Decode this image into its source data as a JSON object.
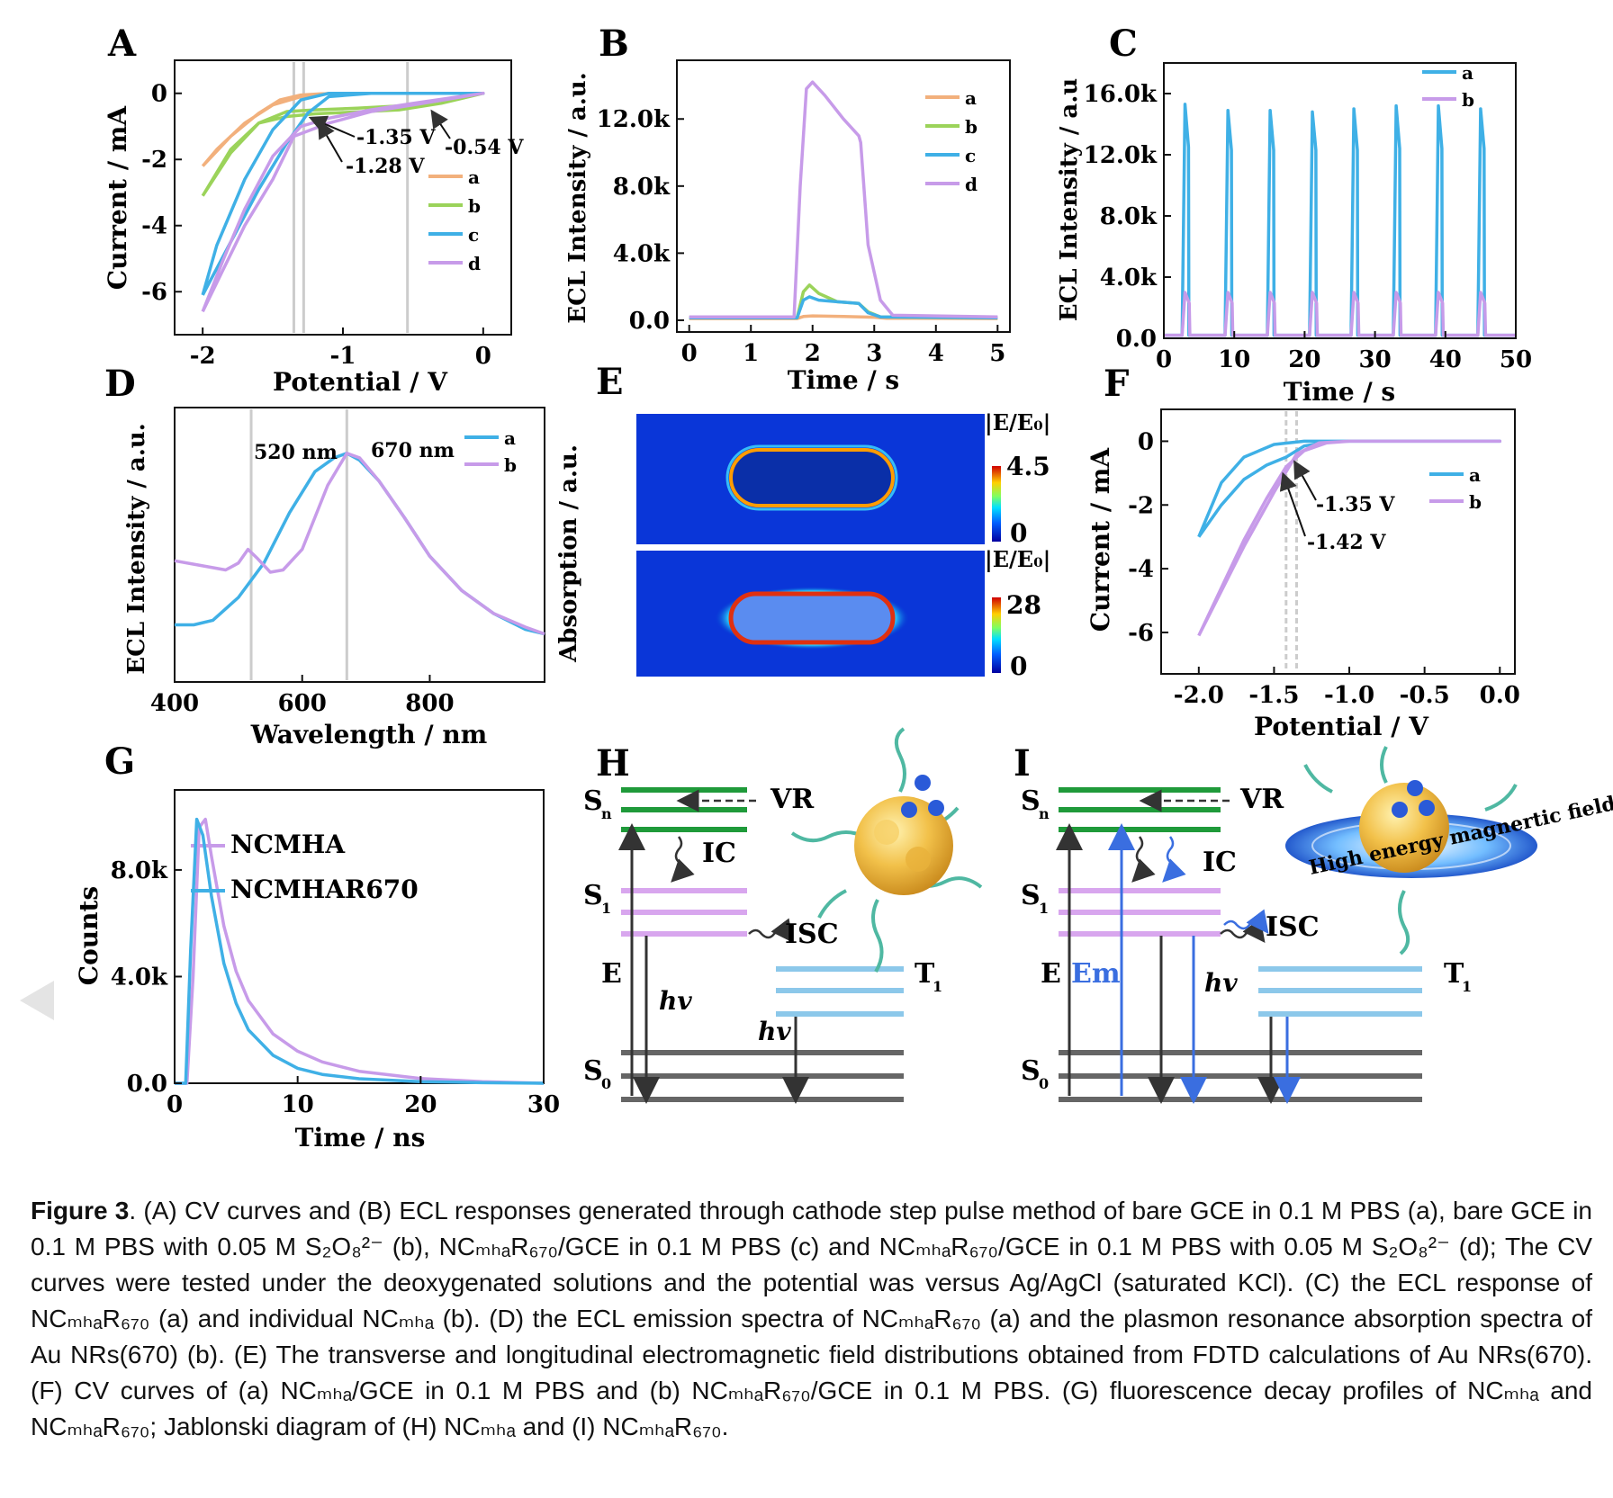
{
  "panels": {
    "A": {
      "letter": "A",
      "xlabel": "Potential / V",
      "ylabel": "Current / mA",
      "xticks": [
        "-2",
        "-1",
        "0"
      ],
      "yticks": [
        "0",
        "-2",
        "-4",
        "-6"
      ],
      "annotations": [
        "-1.35 V",
        "-1.28 V",
        "-0.54 V"
      ],
      "legend": [
        "a",
        "b",
        "c",
        "d"
      ]
    },
    "B": {
      "letter": "B",
      "xlabel": "Time / s",
      "ylabel": "ECL Intensity / a.u.",
      "xticks": [
        "0",
        "1",
        "2",
        "3",
        "4",
        "5"
      ],
      "yticks": [
        "0.0",
        "4.0k",
        "8.0k",
        "12.0k"
      ],
      "legend": [
        "a",
        "b",
        "c",
        "d"
      ]
    },
    "C": {
      "letter": "C",
      "xlabel": "Time / s",
      "ylabel": "ECL Intensity / a.u",
      "xticks": [
        "0",
        "10",
        "20",
        "30",
        "40",
        "50"
      ],
      "yticks": [
        "0.0",
        "4.0k",
        "8.0k",
        "12.0k",
        "16.0k"
      ],
      "legend": [
        "a",
        "b"
      ]
    },
    "D": {
      "letter": "D",
      "xlabel": "Wavelength / nm",
      "ylabel": "ECL Intensity / a.u.",
      "xticks": [
        "400",
        "600",
        "800"
      ],
      "annotations": [
        "520 nm",
        "670 nm"
      ],
      "legend": [
        "a",
        "b"
      ]
    },
    "E": {
      "letter": "E",
      "ylabel": "Absorption / a.u.",
      "colorbar_top": {
        "label": "|E/E₀|",
        "max": "4.5",
        "min": "0"
      },
      "colorbar_bottom": {
        "label": "|E/E₀|",
        "max": "28",
        "min": "0"
      }
    },
    "F": {
      "letter": "F",
      "xlabel": "Potential / V",
      "ylabel": "Current / mA",
      "xticks": [
        "-2.0",
        "-1.5",
        "-1.0",
        "-0.5",
        "0.0"
      ],
      "yticks": [
        "0",
        "-2",
        "-4",
        "-6"
      ],
      "annotations": [
        "-1.35 V",
        "-1.42 V"
      ],
      "legend": [
        "a",
        "b"
      ]
    },
    "G": {
      "letter": "G",
      "xlabel": "Time / ns",
      "ylabel": "Counts",
      "xticks": [
        "0",
        "10",
        "20",
        "30"
      ],
      "yticks": [
        "0.0",
        "4.0k",
        "8.0k"
      ],
      "legend": [
        "NCMHA",
        "NCMHAR670"
      ]
    },
    "H": {
      "letter": "H",
      "labels": {
        "sn": "S",
        "sn_sub": "n",
        "s1": "S",
        "s1_sub": "1",
        "s0": "S",
        "s0_sub": "0",
        "t1": "T",
        "t1_sub": "1",
        "e": "E",
        "vr": "VR",
        "ic": "IC",
        "isc": "ISC",
        "hv": "hv"
      }
    },
    "I": {
      "letter": "I",
      "labels": {
        "sn": "S",
        "sn_sub": "n",
        "s1": "S",
        "s1_sub": "1",
        "s0": "S",
        "s0_sub": "0",
        "t1": "T",
        "t1_sub": "1",
        "e": "E",
        "em": "Em",
        "vr": "VR",
        "ic": "IC",
        "isc": "ISC",
        "hv": "hv",
        "field": "High energy magnertic field"
      }
    }
  },
  "chart_data": [
    {
      "panel": "A",
      "type": "line",
      "xlabel": "Potential / V",
      "ylabel": "Current / mA",
      "xlim": [
        -2.2,
        0.2
      ],
      "ylim": [
        -7.3,
        1.0
      ],
      "series": [
        {
          "name": "a",
          "color": "#f2b07c",
          "x": [
            -2.0,
            -1.8,
            -1.6,
            -1.45,
            -1.3,
            -1.1,
            -0.8,
            -0.4,
            0.0,
            -0.4,
            -0.8,
            -1.1,
            -1.3,
            -1.5,
            -1.7,
            -1.9,
            -2.0
          ],
          "y": [
            -2.2,
            -1.3,
            -0.6,
            -0.2,
            -0.05,
            0,
            0,
            0,
            0,
            0,
            0,
            0,
            -0.1,
            -0.35,
            -0.9,
            -1.7,
            -2.2
          ]
        },
        {
          "name": "b",
          "color": "#9bd35a",
          "x": [
            -2.0,
            -1.8,
            -1.6,
            -1.4,
            -1.2,
            -1.0,
            -0.6,
            -0.3,
            0.0,
            -0.3,
            -0.6,
            -0.9,
            -1.2,
            -1.4,
            -1.6,
            -1.8,
            -2.0
          ],
          "y": [
            -3.1,
            -1.7,
            -0.9,
            -0.7,
            -0.62,
            -0.58,
            -0.5,
            -0.3,
            0,
            -0.2,
            -0.38,
            -0.45,
            -0.5,
            -0.55,
            -0.9,
            -1.8,
            -3.1
          ]
        },
        {
          "name": "c",
          "color": "#3fb0e6",
          "x": [
            -2.0,
            -1.8,
            -1.6,
            -1.4,
            -1.25,
            -1.1,
            -0.8,
            -0.4,
            0.0,
            -0.4,
            -0.8,
            -1.1,
            -1.3,
            -1.5,
            -1.7,
            -1.9,
            -2.0
          ],
          "y": [
            -6.1,
            -4.5,
            -2.9,
            -1.5,
            -0.6,
            -0.1,
            0,
            0,
            0,
            0,
            0,
            0,
            -0.2,
            -1.1,
            -2.6,
            -4.6,
            -6.1
          ]
        },
        {
          "name": "d",
          "color": "#c79be9",
          "x": [
            -2.0,
            -1.85,
            -1.7,
            -1.5,
            -1.35,
            -1.1,
            -0.8,
            -0.5,
            0.0,
            -0.5,
            -0.8,
            -1.1,
            -1.3,
            -1.5,
            -1.7,
            -1.85,
            -2.0
          ],
          "y": [
            -6.6,
            -5.3,
            -4.0,
            -2.6,
            -1.3,
            -0.9,
            -0.55,
            -0.35,
            0,
            -0.3,
            -0.5,
            -0.75,
            -1.0,
            -1.9,
            -3.5,
            -5.0,
            -6.6
          ]
        }
      ]
    },
    {
      "panel": "B",
      "type": "line",
      "xlabel": "Time / s",
      "ylabel": "ECL Intensity / a.u.",
      "xlim": [
        -0.2,
        5.2
      ],
      "ylim": [
        -700,
        15500
      ],
      "series": [
        {
          "name": "a",
          "color": "#f2b07c",
          "x": [
            0,
            1.75,
            1.85,
            2.0,
            2.5,
            3.0,
            3.2,
            5.0
          ],
          "y": [
            100,
            100,
            220,
            260,
            230,
            180,
            120,
            100
          ]
        },
        {
          "name": "b",
          "color": "#9bd35a",
          "x": [
            0,
            1.75,
            1.85,
            1.95,
            2.1,
            2.4,
            2.75,
            2.9,
            3.1,
            5.0
          ],
          "y": [
            150,
            150,
            1700,
            2100,
            1600,
            1100,
            1000,
            500,
            200,
            150
          ]
        },
        {
          "name": "c",
          "color": "#3fb0e6",
          "x": [
            0,
            1.75,
            1.85,
            1.95,
            2.1,
            2.4,
            2.75,
            2.9,
            3.1,
            5.0
          ],
          "y": [
            150,
            150,
            1200,
            1400,
            1200,
            1100,
            1000,
            450,
            200,
            150
          ]
        },
        {
          "name": "d",
          "color": "#c79be9",
          "x": [
            0,
            1.7,
            1.8,
            1.9,
            2.0,
            2.2,
            2.5,
            2.75,
            2.78,
            2.9,
            3.1,
            3.3,
            5.0
          ],
          "y": [
            200,
            200,
            8000,
            13800,
            14200,
            13400,
            12000,
            11000,
            10600,
            4500,
            1200,
            300,
            200
          ]
        }
      ]
    },
    {
      "panel": "C",
      "type": "line",
      "xlabel": "Time / s",
      "ylabel": "ECL Intensity / a.u",
      "xlim": [
        0,
        50
      ],
      "ylim": [
        0,
        18000
      ],
      "series": [
        {
          "name": "a",
          "color": "#3fb0e6",
          "x": [
            0,
            2.6,
            3.0,
            3.5,
            3.55,
            8.7,
            9.1,
            9.6,
            9.65,
            14.7,
            15.1,
            15.6,
            15.65,
            20.7,
            21.1,
            21.6,
            21.65,
            26.6,
            27.0,
            27.5,
            27.55,
            32.6,
            33.0,
            33.5,
            33.55,
            38.6,
            39.0,
            39.5,
            39.55,
            44.6,
            45.0,
            45.5,
            45.55,
            50
          ],
          "y": [
            200,
            200,
            15300,
            12500,
            200,
            200,
            14900,
            12300,
            200,
            200,
            14900,
            12300,
            200,
            200,
            14800,
            12300,
            200,
            200,
            15000,
            12300,
            200,
            200,
            15200,
            12400,
            200,
            200,
            15200,
            12400,
            200,
            200,
            15000,
            12400,
            200,
            200
          ]
        },
        {
          "name": "b",
          "color": "#c79be9",
          "x": [
            0,
            2.6,
            3.0,
            3.6,
            3.7,
            8.7,
            9.1,
            9.7,
            9.8,
            14.7,
            15.1,
            15.7,
            15.8,
            20.7,
            21.1,
            21.7,
            21.8,
            26.6,
            27.0,
            27.6,
            27.7,
            32.6,
            33.0,
            33.6,
            33.7,
            38.6,
            39.0,
            39.6,
            39.7,
            44.6,
            45.0,
            45.6,
            45.7,
            50
          ],
          "y": [
            200,
            200,
            3000,
            2300,
            200,
            200,
            3000,
            2300,
            200,
            200,
            3000,
            2300,
            200,
            200,
            3000,
            2300,
            200,
            200,
            3000,
            2300,
            200,
            200,
            3000,
            2300,
            200,
            200,
            3000,
            2300,
            200,
            200,
            3000,
            2300,
            200,
            200
          ]
        }
      ]
    },
    {
      "panel": "D",
      "type": "line",
      "xlabel": "Wavelength / nm",
      "ylabel": "ECL Intensity / a.u.",
      "xlim": [
        400,
        980
      ],
      "ylim": [
        0,
        1.2
      ],
      "series": [
        {
          "name": "a",
          "color": "#3fb0e6",
          "x": [
            400,
            430,
            460,
            500,
            540,
            580,
            620,
            650,
            670,
            690,
            720,
            760,
            800,
            850,
            900,
            950,
            980
          ],
          "y": [
            0.25,
            0.25,
            0.27,
            0.37,
            0.52,
            0.74,
            0.92,
            0.98,
            1.0,
            0.97,
            0.88,
            0.72,
            0.55,
            0.4,
            0.3,
            0.23,
            0.21
          ]
        },
        {
          "name": "b",
          "color": "#c79be9",
          "x": [
            400,
            440,
            480,
            500,
            515,
            530,
            550,
            570,
            600,
            640,
            670,
            690,
            720,
            760,
            800,
            850,
            900,
            950,
            980
          ],
          "y": [
            0.53,
            0.51,
            0.49,
            0.52,
            0.58,
            0.54,
            0.48,
            0.49,
            0.58,
            0.86,
            1.0,
            0.98,
            0.88,
            0.72,
            0.55,
            0.4,
            0.3,
            0.24,
            0.21
          ]
        }
      ]
    },
    {
      "panel": "F",
      "type": "line",
      "xlabel": "Potential / V",
      "ylabel": "Current / mA",
      "xlim": [
        -2.25,
        0.1
      ],
      "ylim": [
        -7.3,
        1.0
      ],
      "series": [
        {
          "name": "a",
          "color": "#3fb0e6",
          "x": [
            -2.0,
            -1.85,
            -1.7,
            -1.55,
            -1.42,
            -1.3,
            -1.1,
            -0.8,
            -0.4,
            0.0,
            -0.4,
            -0.8,
            -1.1,
            -1.3,
            -1.5,
            -1.7,
            -1.85,
            -2.0
          ],
          "y": [
            -3.0,
            -2.0,
            -1.2,
            -0.75,
            -0.5,
            -0.15,
            0,
            0,
            0,
            0,
            0,
            0,
            0,
            0,
            -0.1,
            -0.5,
            -1.3,
            -3.0
          ]
        },
        {
          "name": "b",
          "color": "#c79be9",
          "x": [
            -2.0,
            -1.85,
            -1.7,
            -1.55,
            -1.42,
            -1.3,
            -1.15,
            -1.0,
            -0.6,
            0.0,
            -0.6,
            -1.0,
            -1.2,
            -1.35,
            -1.5,
            -1.7,
            -1.85,
            -2.0
          ],
          "y": [
            -6.1,
            -4.6,
            -3.1,
            -1.8,
            -0.8,
            -0.3,
            -0.05,
            0,
            0,
            0,
            0,
            0,
            -0.05,
            -0.4,
            -1.6,
            -3.3,
            -4.7,
            -6.1
          ]
        }
      ]
    },
    {
      "panel": "G",
      "type": "line",
      "xlabel": "Time / ns",
      "ylabel": "Counts",
      "xlim": [
        0,
        30
      ],
      "ylim": [
        0,
        11000
      ],
      "series": [
        {
          "name": "NCMHA",
          "color": "#c79be9",
          "x": [
            0,
            1.0,
            1.5,
            2.0,
            2.5,
            3.0,
            4.0,
            5.0,
            6.0,
            8.0,
            10.0,
            12.0,
            15.0,
            20.0,
            25.0,
            30.0
          ],
          "y": [
            0,
            0,
            4000,
            9600,
            9900,
            8500,
            5900,
            4200,
            3100,
            1850,
            1200,
            800,
            450,
            180,
            60,
            0
          ]
        },
        {
          "name": "NCMHAR670",
          "color": "#3fb0e6",
          "x": [
            0,
            0.9,
            1.3,
            1.8,
            2.3,
            3.0,
            4.0,
            5.0,
            6.0,
            8.0,
            10.0,
            12.0,
            15.0,
            20.0,
            25.0,
            30.0
          ],
          "y": [
            0,
            0,
            5000,
            9900,
            9300,
            7000,
            4500,
            3000,
            2000,
            1050,
            560,
            330,
            170,
            60,
            20,
            0
          ]
        }
      ]
    }
  ],
  "caption": {
    "label": "Figure 3",
    "text": ". (A) CV curves and (B) ECL responses generated through cathode step pulse method of bare GCE in 0.1 M PBS (a), bare GCE in 0.1 M PBS with 0.05 M S₂O₈²⁻ (b), NCₘₕₐR₆₇₀/GCE in 0.1 M PBS (c) and NCₘₕₐR₆₇₀/GCE in 0.1 M PBS with 0.05 M S₂O₈²⁻ (d); The CV curves were tested under the deoxygenated solutions and the potential was versus Ag/AgCl (saturated KCl). (C) the ECL response of NCₘₕₐR₆₇₀ (a) and individual NCₘₕₐ (b). (D) the ECL emission spectra of NCₘₕₐR₆₇₀ (a) and the plasmon resonance absorption spectra of Au NRs(670) (b). (E) The transverse and longitudinal electromagnetic field distributions obtained from FDTD calculations of Au NRs(670). (F) CV curves of (a) NCₘₕₐ/GCE in 0.1 M PBS and (b) NCₘₕₐR₆₇₀/GCE in 0.1 M PBS. (G) fluorescence decay profiles of NCₘₕₐ and NCₘₕₐR₆₇₀; Jablonski diagram of (H) NCₘₕₐ and (I) NCₘₕₐR₆₇₀."
  }
}
